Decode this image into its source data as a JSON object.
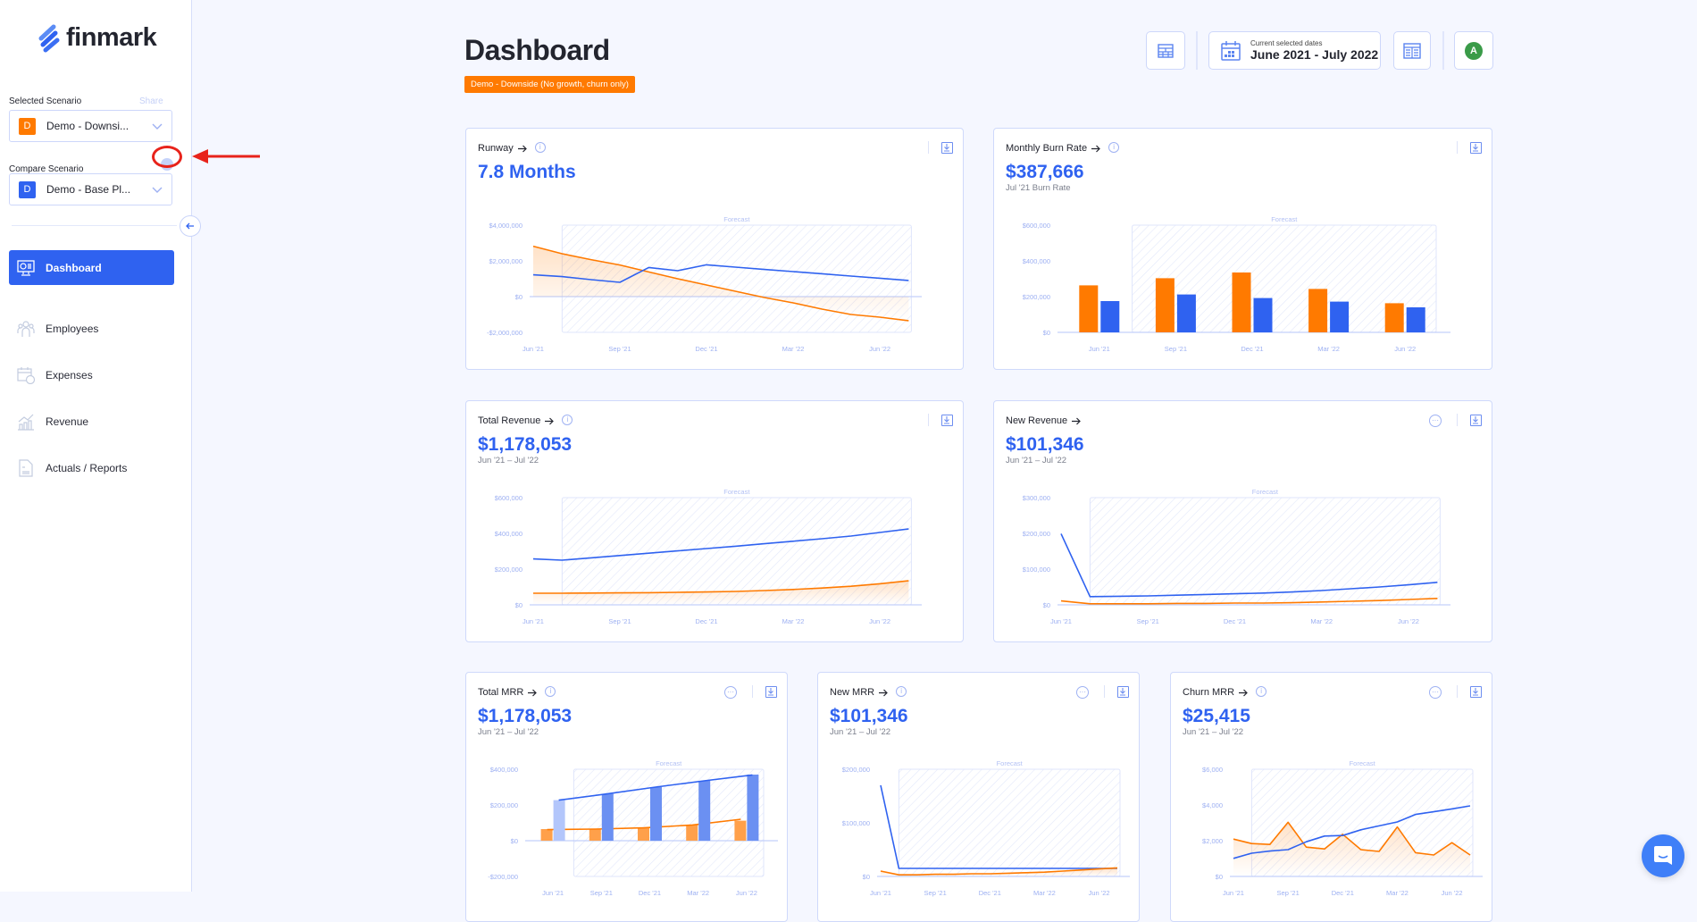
{
  "app": {
    "brand": "finmark"
  },
  "sidebar": {
    "selected_label": "Selected Scenario",
    "share_label": "Share",
    "selected": {
      "initial": "D",
      "name": "Demo - Downsi...",
      "color": "#ff7a00"
    },
    "compare_label": "Compare Scenario",
    "compare": {
      "initial": "D",
      "name": "Demo - Base Pl...",
      "color": "#2f62f0"
    },
    "nav": [
      {
        "label": "Dashboard",
        "icon": "monitor-dashboard-icon",
        "active": true
      },
      {
        "label": "Employees",
        "icon": "people-icon"
      },
      {
        "label": "Expenses",
        "icon": "calendar-dollar-icon"
      },
      {
        "label": "Revenue",
        "icon": "bar-chart-growth-icon"
      },
      {
        "label": "Actuals / Reports",
        "icon": "document-dollar-icon"
      }
    ]
  },
  "header": {
    "title": "Dashboard",
    "scenario_badge": "Demo - Downside (No growth, churn only)",
    "dates_label": "Current selected dates",
    "dates_value": "June 2021 - July 2022",
    "avatar": "A"
  },
  "colors": {
    "primary": "#2f62f0",
    "secondary": "#ff7a00",
    "axis": "#9db0f2",
    "avatar": "#3a9b48"
  },
  "cards": [
    {
      "title": "Runway",
      "value": "7.8 Months",
      "subtitle": "",
      "info": true,
      "more": false
    },
    {
      "title": "Monthly Burn Rate",
      "value": "$387,666",
      "subtitle": "Jul '21 Burn Rate",
      "info": true,
      "more": false
    },
    {
      "title": "Total Revenue",
      "value": "$1,178,053",
      "subtitle": "Jun '21 – Jul '22",
      "info": true,
      "more": false
    },
    {
      "title": "New Revenue",
      "value": "$101,346",
      "subtitle": "Jun '21 – Jul '22",
      "info": false,
      "more": true
    },
    {
      "title": "Total MRR",
      "value": "$1,178,053",
      "subtitle": "Jun '21 – Jul '22",
      "info": true,
      "more": true
    },
    {
      "title": "New MRR",
      "value": "$101,346",
      "subtitle": "Jun '21 – Jul '22",
      "info": true,
      "more": true
    },
    {
      "title": "Churn MRR",
      "value": "$25,415",
      "subtitle": "Jun '21 – Jul '22",
      "info": true,
      "more": true
    }
  ],
  "chart_data": [
    {
      "type": "line",
      "forecast_label": "Forecast",
      "forecast_from": 1,
      "x": [
        "Jun '21",
        "Jul '21",
        "Aug '21",
        "Sep '21",
        "Oct '21",
        "Nov '21",
        "Dec '21",
        "Jan '22",
        "Feb '22",
        "Mar '22",
        "Apr '22",
        "May '22",
        "Jun '22",
        "Jul '22"
      ],
      "tick_labels": [
        "Jun '21",
        "Sep '21",
        "Dec '21",
        "Mar '22",
        "Jun '22"
      ],
      "tick_index": [
        0,
        3,
        6,
        9,
        12
      ],
      "ylim": [
        -2000000,
        4000000
      ],
      "yticks": [
        {
          "v": 4000000,
          "l": "$4,000,000"
        },
        {
          "v": 2000000,
          "l": "$2,000,000"
        },
        {
          "v": 0,
          "l": "$0"
        },
        {
          "v": -2000000,
          "l": "-$2,000,000"
        }
      ],
      "series": [
        {
          "color": "#ff7a00",
          "fill": true,
          "values": [
            2820000,
            2400000,
            2070000,
            1770000,
            1380000,
            1000000,
            650000,
            300000,
            -50000,
            -350000,
            -700000,
            -1000000,
            -1150000,
            -1350000
          ]
        },
        {
          "color": "#2f62f0",
          "values": [
            1220000,
            1120000,
            950000,
            800000,
            1630000,
            1450000,
            1780000,
            1650000,
            1520000,
            1400000,
            1280000,
            1150000,
            1030000,
            900000
          ]
        }
      ]
    },
    {
      "type": "bar",
      "forecast_label": "Forecast",
      "categories": [
        "Jun '21",
        "Sep '21",
        "Dec '21",
        "Mar '22",
        "Jun '22"
      ],
      "ylim": [
        0,
        600000
      ],
      "yticks": [
        {
          "v": 600000,
          "l": "$600,000"
        },
        {
          "v": 400000,
          "l": "$400,000"
        },
        {
          "v": 200000,
          "l": "$200,000"
        },
        {
          "v": 0,
          "l": "$0"
        }
      ],
      "series": [
        {
          "color": "#ff7a00",
          "values": [
            263000,
            303000,
            335000,
            243000,
            163000
          ]
        },
        {
          "color": "#2f62f0",
          "values": [
            175000,
            212000,
            192000,
            172000,
            140000
          ]
        }
      ]
    },
    {
      "type": "line",
      "forecast_label": "Forecast",
      "forecast_from": 1,
      "x": [
        "Jun '21",
        "Jul '21",
        "Aug '21",
        "Sep '21",
        "Oct '21",
        "Nov '21",
        "Dec '21",
        "Jan '22",
        "Feb '22",
        "Mar '22",
        "Apr '22",
        "May '22",
        "Jun '22",
        "Jul '22"
      ],
      "tick_labels": [
        "Jun '21",
        "Sep '21",
        "Dec '21",
        "Mar '22",
        "Jun '22"
      ],
      "tick_index": [
        0,
        3,
        6,
        9,
        12
      ],
      "ylim": [
        0,
        600000
      ],
      "yticks": [
        {
          "v": 600000,
          "l": "$600,000"
        },
        {
          "v": 400000,
          "l": "$400,000"
        },
        {
          "v": 200000,
          "l": "$200,000"
        },
        {
          "v": 0,
          "l": "$0"
        }
      ],
      "series": [
        {
          "color": "#2f62f0",
          "values": [
            257000,
            250000,
            263000,
            276000,
            289000,
            302000,
            315000,
            328000,
            342000,
            356000,
            370000,
            385000,
            405000,
            425000
          ]
        },
        {
          "color": "#ff7a00",
          "fill": true,
          "values": [
            65000,
            65000,
            66000,
            67000,
            68000,
            70000,
            72000,
            75000,
            80000,
            86000,
            94000,
            104000,
            118000,
            135000
          ]
        }
      ]
    },
    {
      "type": "line",
      "forecast_label": "Forecast",
      "forecast_from": 1,
      "x": [
        "Jun '21",
        "Jul '21",
        "Aug '21",
        "Sep '21",
        "Oct '21",
        "Nov '21",
        "Dec '21",
        "Jan '22",
        "Feb '22",
        "Mar '22",
        "Apr '22",
        "May '22",
        "Jun '22",
        "Jul '22"
      ],
      "tick_labels": [
        "Jun '21",
        "Sep '21",
        "Dec '21",
        "Mar '22",
        "Jun '22"
      ],
      "tick_index": [
        0,
        3,
        6,
        9,
        12
      ],
      "ylim": [
        0,
        300000
      ],
      "yticks": [
        {
          "v": 300000,
          "l": "$300,000"
        },
        {
          "v": 200000,
          "l": "$200,000"
        },
        {
          "v": 100000,
          "l": "$100,000"
        },
        {
          "v": 0,
          "l": "$0"
        }
      ],
      "series": [
        {
          "color": "#2f62f0",
          "values": [
            199000,
            23000,
            24000,
            25000,
            27000,
            29000,
            31000,
            33000,
            36000,
            40000,
            45000,
            50000,
            56000,
            63000
          ]
        },
        {
          "color": "#ff7a00",
          "values": [
            11000,
            3000,
            3000,
            3000,
            4000,
            4000,
            5000,
            5000,
            6000,
            8000,
            10000,
            12000,
            15000,
            18000
          ]
        }
      ]
    },
    {
      "type": "bar-line",
      "forecast_label": "Forecast",
      "categories": [
        "Jun '21",
        "Sep '21",
        "Dec '21",
        "Mar '22",
        "Jun '22"
      ],
      "ylim": [
        -200000,
        400000
      ],
      "yticks": [
        {
          "v": 400000,
          "l": "$400,000"
        },
        {
          "v": 200000,
          "l": "$200,000"
        },
        {
          "v": 0,
          "l": "$0"
        },
        {
          "v": -200000,
          "l": "-$200,000"
        }
      ],
      "series": [
        {
          "color": "#ff7a00",
          "values": [
            65000,
            65000,
            72000,
            88000,
            112000
          ],
          "line": [
            62000,
            65000,
            72000,
            88000,
            120000
          ]
        },
        {
          "color": "#2f62f0",
          "values": [
            227000,
            262000,
            300000,
            335000,
            370000
          ],
          "line": [
            227000,
            262000,
            300000,
            335000,
            368000
          ]
        }
      ]
    },
    {
      "type": "line",
      "forecast_label": "Forecast",
      "forecast_from": 1,
      "x": [
        "Jun '21",
        "Jul '21",
        "Aug '21",
        "Sep '21",
        "Oct '21",
        "Nov '21",
        "Dec '21",
        "Jan '22",
        "Feb '22",
        "Mar '22",
        "Apr '22",
        "May '22",
        "Jun '22",
        "Jul '22"
      ],
      "tick_labels": [
        "Jun '21",
        "Sep '21",
        "Dec '21",
        "Mar '22",
        "Jun '22"
      ],
      "tick_index": [
        0,
        3,
        6,
        9,
        12
      ],
      "ylim": [
        0,
        200000
      ],
      "yticks": [
        {
          "v": 200000,
          "l": "$200,000"
        },
        {
          "v": 100000,
          "l": "$100,000"
        },
        {
          "v": 0,
          "l": "$0"
        }
      ],
      "series": [
        {
          "color": "#2f62f0",
          "values": [
            170000,
            15000,
            15000,
            15000,
            15000,
            15000,
            15000,
            15000,
            15000,
            15000,
            15000,
            15000,
            15000,
            15000
          ]
        },
        {
          "color": "#ff7a00",
          "fill": true,
          "values": [
            10000,
            3000,
            3000,
            4000,
            4000,
            5000,
            5000,
            6000,
            7000,
            8000,
            10000,
            12000,
            14000,
            16000
          ]
        }
      ]
    },
    {
      "type": "line",
      "forecast_label": "Forecast",
      "forecast_from": 1,
      "x": [
        "Jun '21",
        "Jul '21",
        "Aug '21",
        "Sep '21",
        "Oct '21",
        "Nov '21",
        "Dec '21",
        "Jan '22",
        "Feb '22",
        "Mar '22",
        "Apr '22",
        "May '22",
        "Jun '22",
        "Jul '22"
      ],
      "tick_labels": [
        "Jun '21",
        "Sep '21",
        "Dec '21",
        "Mar '22",
        "Jun '22"
      ],
      "tick_index": [
        0,
        3,
        6,
        9,
        12
      ],
      "ylim": [
        0,
        6000
      ],
      "yticks": [
        {
          "v": 6000,
          "l": "$6,000"
        },
        {
          "v": 4000,
          "l": "$4,000"
        },
        {
          "v": 2000,
          "l": "$2,000"
        },
        {
          "v": 0,
          "l": "$0"
        }
      ],
      "series": [
        {
          "color": "#ff7a00",
          "fill": true,
          "values": [
            2090,
            1840,
            1790,
            3030,
            1640,
            1540,
            2360,
            1500,
            1400,
            2770,
            1330,
            1200,
            1890,
            1200
          ]
        },
        {
          "color": "#2f62f0",
          "values": [
            1010,
            1300,
            1420,
            1500,
            1940,
            2260,
            2290,
            2610,
            2830,
            3050,
            3470,
            3620,
            3780,
            3950
          ]
        }
      ]
    }
  ]
}
